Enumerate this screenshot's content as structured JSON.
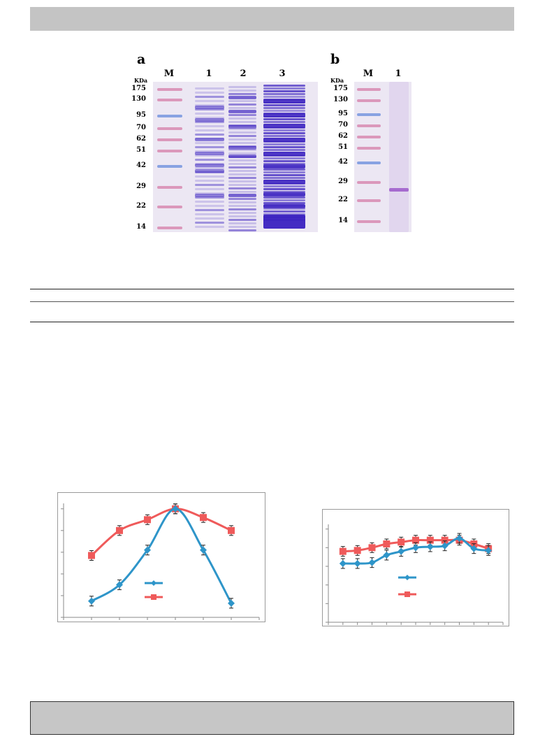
{
  "panel_a": {
    "letter": "a",
    "kda_title": "KDa",
    "lanes": [
      "M",
      "1",
      "2",
      "3"
    ],
    "markers": [
      "175",
      "130",
      "95",
      "70",
      "62",
      "51",
      "42",
      "29",
      "22",
      "14"
    ]
  },
  "panel_b": {
    "letter": "b",
    "kda_title": "KDa",
    "lanes": [
      "M",
      "1"
    ],
    "markers": [
      "175",
      "130",
      "95",
      "70",
      "62",
      "51",
      "42",
      "29",
      "22",
      "14"
    ]
  },
  "colors": {
    "series_blue": "#2e95c9",
    "series_red": "#ef5a5a",
    "marker_band_pink": "#d98fb5",
    "marker_band_blue": "#7d9ae0",
    "gel_bg": "#ece7f3",
    "coomassie": "#3b22c0"
  },
  "chart_data": [
    {
      "type": "line",
      "x": [
        1,
        2,
        3,
        4,
        5,
        6
      ],
      "series": [
        {
          "values": [
            15,
            30,
            62,
            100,
            62,
            13
          ]
        },
        {
          "values": [
            57,
            80,
            90,
            100,
            92,
            80
          ]
        }
      ],
      "ylim": [
        0,
        105
      ],
      "xlim": [
        0,
        7
      ],
      "grid": false,
      "legend": "center"
    },
    {
      "type": "line",
      "x": [
        1,
        2,
        3,
        4,
        5,
        6,
        7,
        8,
        9,
        10,
        11
      ],
      "series": [
        {
          "values": [
            63,
            63,
            64,
            72,
            76,
            80,
            81,
            82,
            90,
            79,
            77
          ]
        },
        {
          "values": [
            76,
            77,
            80,
            84,
            86,
            88,
            88,
            88,
            88,
            84,
            79
          ]
        }
      ],
      "ylim": [
        0,
        105
      ],
      "xlim": [
        0,
        12
      ],
      "grid": false,
      "legend": "center"
    }
  ]
}
